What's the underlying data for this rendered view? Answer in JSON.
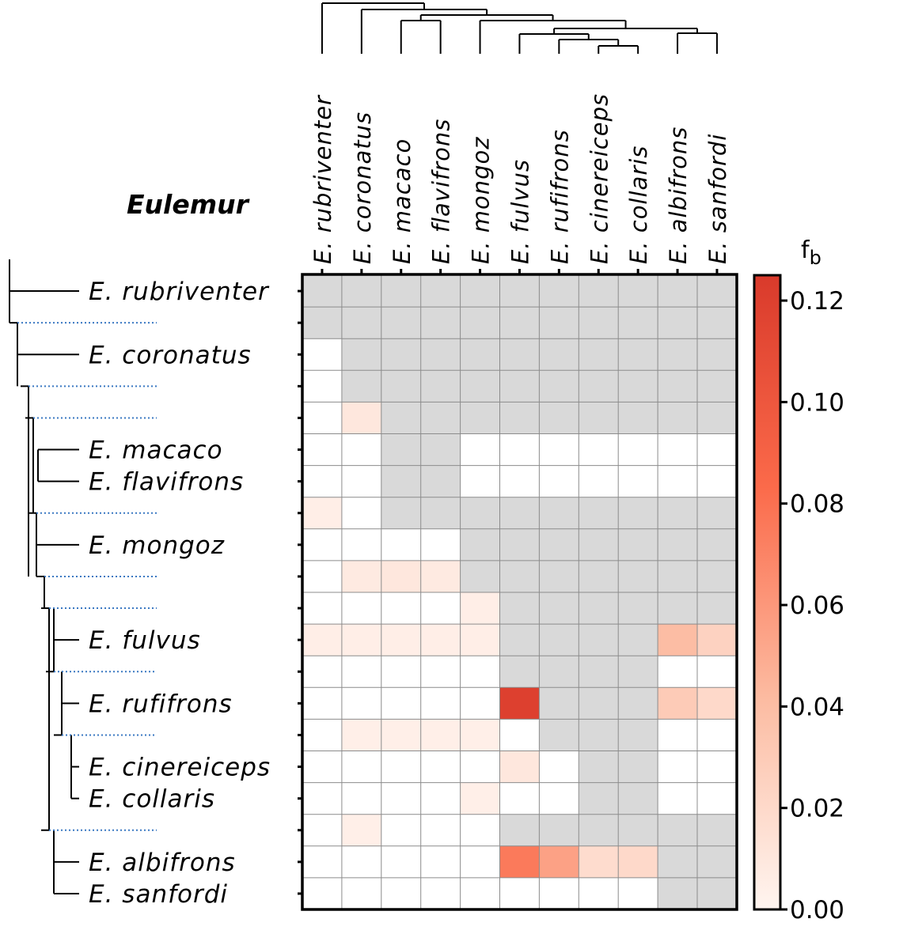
{
  "chart_data": {
    "type": "heatmap",
    "title": "Eulemur",
    "species": [
      "E. rubriventer",
      "E. coronatus",
      "E. macaco",
      "E. flavifrons",
      "E. mongoz",
      "E. fulvus",
      "E. rufifrons",
      "E. cinereiceps",
      "E. collaris",
      "E. albifrons",
      "E. sanfordi"
    ],
    "row_labels": [
      "E. rubriventer",
      "",
      "E. coronatus",
      "",
      "",
      "E. macaco",
      "E. flavifrons",
      "",
      "E. mongoz",
      "",
      "",
      "E. fulvus",
      "",
      "E. rufifrons",
      "",
      "E. cinereiceps",
      "E. collaris",
      "",
      "E. albifrons",
      "E. sanfordi"
    ],
    "row_types": [
      "leaf",
      "internal",
      "leaf",
      "internal",
      "internal",
      "leaf",
      "leaf",
      "internal",
      "leaf",
      "internal",
      "internal",
      "leaf",
      "internal",
      "leaf",
      "internal",
      "leaf",
      "leaf",
      "internal",
      "leaf",
      "leaf"
    ],
    "values": [
      [
        null,
        null,
        null,
        null,
        null,
        null,
        null,
        null,
        null,
        null,
        null
      ],
      [
        null,
        null,
        null,
        null,
        null,
        null,
        null,
        null,
        null,
        null,
        null
      ],
      [
        0,
        null,
        null,
        null,
        null,
        null,
        null,
        null,
        null,
        null,
        null
      ],
      [
        0,
        null,
        null,
        null,
        null,
        null,
        null,
        null,
        null,
        null,
        null
      ],
      [
        0,
        0.01,
        null,
        null,
        null,
        null,
        null,
        null,
        null,
        null,
        null
      ],
      [
        0,
        0,
        null,
        null,
        0,
        0,
        0,
        0,
        0,
        0,
        0
      ],
      [
        0,
        0,
        null,
        null,
        0,
        0,
        0,
        0,
        0,
        0,
        0
      ],
      [
        0.005,
        0,
        null,
        null,
        null,
        null,
        null,
        null,
        null,
        null,
        null
      ],
      [
        0,
        0,
        0,
        0,
        null,
        null,
        null,
        null,
        null,
        null,
        null
      ],
      [
        0,
        0.008,
        0.01,
        0.008,
        null,
        null,
        null,
        null,
        null,
        null,
        null
      ],
      [
        0,
        0,
        0,
        0,
        0.005,
        null,
        null,
        null,
        null,
        null,
        null
      ],
      [
        0.005,
        0.005,
        0.005,
        0.005,
        0.005,
        null,
        null,
        null,
        null,
        0.04,
        0.025
      ],
      [
        0,
        0,
        0,
        0,
        0,
        null,
        null,
        null,
        null,
        0,
        0
      ],
      [
        0,
        0,
        0,
        0,
        0,
        0.12,
        null,
        null,
        null,
        0.03,
        0.02
      ],
      [
        0,
        0.004,
        0.004,
        0.004,
        0.004,
        0,
        null,
        null,
        null,
        0,
        0
      ],
      [
        0,
        0,
        0,
        0,
        0,
        0.01,
        0,
        null,
        null,
        0,
        0
      ],
      [
        0,
        0,
        0,
        0,
        0.004,
        0,
        0,
        null,
        null,
        0,
        0
      ],
      [
        0,
        0.004,
        0,
        0,
        0,
        null,
        null,
        null,
        null,
        null,
        null
      ],
      [
        0,
        0,
        0,
        0,
        0,
        0.075,
        0.055,
        0.018,
        0.02,
        null,
        null
      ],
      [
        0,
        0,
        0,
        0,
        0,
        0,
        0,
        0,
        0,
        null,
        null
      ]
    ],
    "missing_color": "#d9d9d9",
    "colormap": [
      "#fff5f0",
      "#fcbba1",
      "#fb6a4a",
      "#d93a2b"
    ],
    "colorbar": {
      "title": "f",
      "subscript": "b",
      "range": [
        0,
        0.125
      ],
      "ticks": [
        0.0,
        0.02,
        0.04,
        0.06,
        0.08,
        0.1,
        0.12
      ],
      "tick_labels": [
        "0.00",
        "0.02",
        "0.04",
        "0.06",
        "0.08",
        "0.10",
        "0.12"
      ]
    }
  }
}
